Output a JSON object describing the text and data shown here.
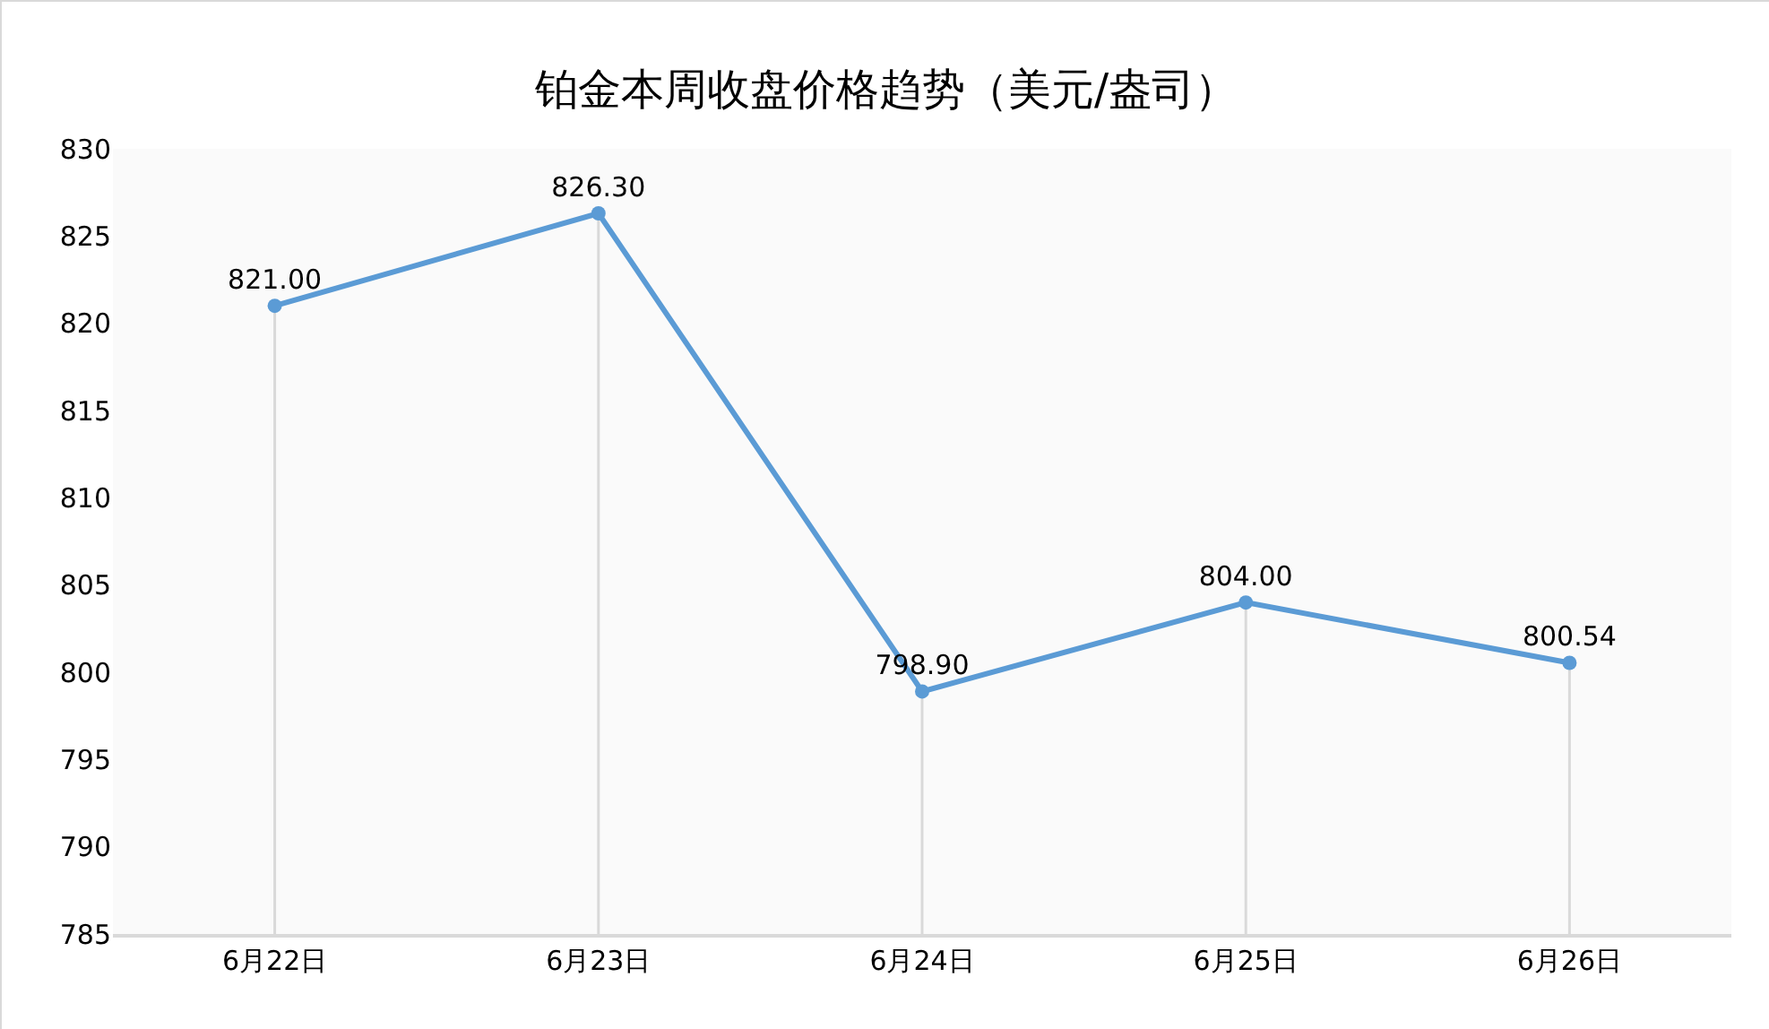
{
  "chart_data": {
    "type": "line",
    "title": "铂金本周收盘价格趋势（美元/盎司）",
    "categories": [
      "6月22日",
      "6月23日",
      "6月24日",
      "6月25日",
      "6月26日"
    ],
    "series": [
      {
        "color": "#5b9bd5",
        "values": [
          821.0,
          826.3,
          798.9,
          804.0,
          800.54
        ],
        "value_labels": [
          "821.00",
          "826.30",
          "798.90",
          "804.00",
          "800.54"
        ]
      }
    ],
    "ylim": [
      785,
      830
    ],
    "yticks": [
      785,
      790,
      795,
      800,
      805,
      810,
      815,
      820,
      825,
      830
    ],
    "grid": "x",
    "marker": "circle",
    "line_style": "solid"
  }
}
